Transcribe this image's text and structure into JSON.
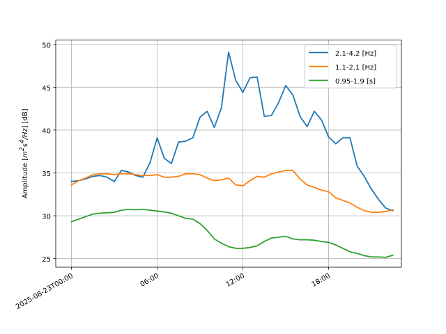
{
  "chart_data": {
    "type": "line",
    "ylabel_main": "Amplitude [",
    "ylabel_unit_pre": "m",
    "ylabel_unit_sup1": "2",
    "ylabel_unit_mid": "s",
    "ylabel_unit_sup2": "4",
    "ylabel_unit_post": "/Hz",
    "ylabel_end": "] [dB]",
    "ylim": [
      24.0,
      50.5
    ],
    "xlim": [
      -1.1,
      23.1
    ],
    "yticks": [
      25,
      30,
      35,
      40,
      45,
      50
    ],
    "xticks": [
      {
        "hour": 0,
        "label": "2025-08-23T00:00"
      },
      {
        "hour": 6,
        "label": "06:00"
      },
      {
        "hour": 12,
        "label": "12:00"
      },
      {
        "hour": 18,
        "label": "18:00"
      }
    ],
    "grid": true,
    "legend_position": "upper right",
    "x_hours": [
      0,
      0.5,
      1,
      1.5,
      2,
      2.5,
      3,
      3.5,
      4,
      4.5,
      5,
      5.5,
      6,
      6.5,
      7,
      7.5,
      8,
      8.5,
      9,
      9.5,
      10,
      10.5,
      11,
      11.5,
      12,
      12.5,
      13,
      13.5,
      14,
      14.5,
      15,
      15.5,
      16,
      16.5,
      17,
      17.5,
      18,
      18.5,
      19,
      19.5,
      20,
      20.5,
      21,
      21.5,
      22,
      22.5
    ],
    "series": [
      {
        "name": "2.1-4.2 [Hz]",
        "color": "#1f77b4",
        "values": [
          34.0,
          34.1,
          34.3,
          34.6,
          34.7,
          34.5,
          34.0,
          35.3,
          35.1,
          34.7,
          34.5,
          36.2,
          39.1,
          36.7,
          36.1,
          38.6,
          38.7,
          39.1,
          41.5,
          42.2,
          40.3,
          42.6,
          49.1,
          45.8,
          44.4,
          46.1,
          46.2,
          41.6,
          41.7,
          43.2,
          45.2,
          44.1,
          41.6,
          40.4,
          42.2,
          41.2,
          39.2,
          38.4,
          39.1,
          39.1,
          35.8,
          34.6,
          33.1,
          31.9,
          30.9,
          30.6
        ]
      },
      {
        "name": "1.1-2.1 [Hz]",
        "color": "#ff7f0e",
        "values": [
          33.6,
          34.1,
          34.4,
          34.8,
          34.9,
          34.9,
          34.8,
          34.9,
          34.9,
          34.8,
          34.7,
          34.7,
          34.8,
          34.5,
          34.5,
          34.6,
          34.9,
          34.9,
          34.8,
          34.4,
          34.1,
          34.2,
          34.4,
          33.6,
          33.5,
          34.1,
          34.6,
          34.5,
          34.9,
          35.1,
          35.3,
          35.3,
          34.3,
          33.6,
          33.3,
          33.0,
          32.8,
          32.1,
          31.8,
          31.5,
          31.0,
          30.6,
          30.4,
          30.4,
          30.5,
          30.7
        ]
      },
      {
        "name": "0.95-1.9 [s]",
        "color": "#2ca02c",
        "values": [
          29.3,
          29.6,
          29.9,
          30.2,
          30.3,
          30.35,
          30.4,
          30.65,
          30.75,
          30.7,
          30.75,
          30.65,
          30.55,
          30.45,
          30.3,
          30.0,
          29.7,
          29.6,
          29.1,
          28.3,
          27.3,
          26.8,
          26.4,
          26.2,
          26.2,
          26.3,
          26.5,
          27.0,
          27.4,
          27.5,
          27.6,
          27.3,
          27.2,
          27.2,
          27.15,
          27.0,
          26.9,
          26.6,
          26.2,
          25.8,
          25.6,
          25.35,
          25.2,
          25.2,
          25.15,
          25.4
        ]
      }
    ]
  }
}
